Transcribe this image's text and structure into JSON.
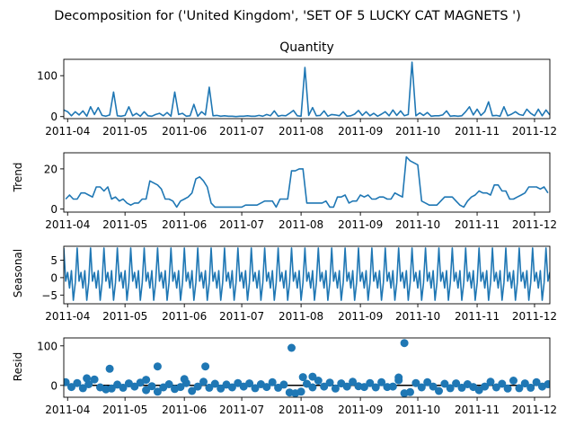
{
  "figure": {
    "suptitle": "Decomposition for ('United Kingdom', 'SET OF 5 LUCKY CAT MAGNETS ')"
  },
  "style": {
    "line_color": "#1f77b4",
    "axes_color": "#000000",
    "background": "#ffffff"
  },
  "chart_data": [
    {
      "type": "line",
      "title": "Quantity",
      "ylabel": "",
      "x_range": [
        "2011-03-30",
        "2011-12-09"
      ],
      "ylim": [
        -5,
        140
      ],
      "yticks": [
        0,
        100
      ],
      "xtick_labels": [
        "2011-04",
        "2011-05",
        "2011-06",
        "2011-07",
        "2011-08",
        "2011-09",
        "2011-10",
        "2011-11",
        "2011-12"
      ],
      "grid": false,
      "series": [
        {
          "x": [
            "2011-03-30",
            "2011-04-01",
            "2011-04-03",
            "2011-04-05",
            "2011-04-07",
            "2011-04-09",
            "2011-04-11",
            "2011-04-13",
            "2011-04-15",
            "2011-04-17",
            "2011-04-19",
            "2011-04-21",
            "2011-04-23",
            "2011-04-25",
            "2011-04-27",
            "2011-04-29",
            "2011-05-01",
            "2011-05-03",
            "2011-05-05",
            "2011-05-07",
            "2011-05-09",
            "2011-05-11",
            "2011-05-13",
            "2011-05-15",
            "2011-05-17",
            "2011-05-19",
            "2011-05-21",
            "2011-05-23",
            "2011-05-25",
            "2011-05-27",
            "2011-05-29",
            "2011-05-31",
            "2011-06-02",
            "2011-06-04",
            "2011-06-06",
            "2011-06-08",
            "2011-06-10",
            "2011-06-12",
            "2011-06-14",
            "2011-06-16",
            "2011-06-18",
            "2011-06-20",
            "2011-06-22",
            "2011-06-24",
            "2011-06-26",
            "2011-06-28",
            "2011-06-30",
            "2011-07-02",
            "2011-07-04",
            "2011-07-06",
            "2011-07-08",
            "2011-07-10",
            "2011-07-12",
            "2011-07-14",
            "2011-07-16",
            "2011-07-18",
            "2011-07-20",
            "2011-07-22",
            "2011-07-24",
            "2011-07-26",
            "2011-07-28",
            "2011-07-30",
            "2011-08-01",
            "2011-08-03",
            "2011-08-05",
            "2011-08-07",
            "2011-08-09",
            "2011-08-11",
            "2011-08-13",
            "2011-08-15",
            "2011-08-17",
            "2011-08-19",
            "2011-08-21",
            "2011-08-23",
            "2011-08-25",
            "2011-08-27",
            "2011-08-29",
            "2011-08-31",
            "2011-09-02",
            "2011-09-04",
            "2011-09-06",
            "2011-09-08",
            "2011-09-10",
            "2011-09-12",
            "2011-09-14",
            "2011-09-16",
            "2011-09-18",
            "2011-09-20",
            "2011-09-22",
            "2011-09-24",
            "2011-09-26",
            "2011-09-28",
            "2011-09-30",
            "2011-10-02",
            "2011-10-04",
            "2011-10-06",
            "2011-10-08",
            "2011-10-10",
            "2011-10-12",
            "2011-10-14",
            "2011-10-16",
            "2011-10-18",
            "2011-10-20",
            "2011-10-22",
            "2011-10-24",
            "2011-10-26",
            "2011-10-28",
            "2011-10-30",
            "2011-11-01",
            "2011-11-03",
            "2011-11-05",
            "2011-11-07",
            "2011-11-09",
            "2011-11-11",
            "2011-11-13",
            "2011-11-15",
            "2011-11-17",
            "2011-11-19",
            "2011-11-21",
            "2011-11-23",
            "2011-11-25",
            "2011-11-27",
            "2011-11-29",
            "2011-12-01",
            "2011-12-03",
            "2011-12-05",
            "2011-12-07",
            "2011-12-09"
          ],
          "values": [
            16,
            12,
            2,
            12,
            4,
            14,
            1,
            24,
            5,
            22,
            3,
            1,
            4,
            60,
            2,
            1,
            3,
            24,
            2,
            8,
            1,
            12,
            2,
            1,
            5,
            8,
            2,
            10,
            1,
            60,
            5,
            8,
            1,
            2,
            30,
            1,
            12,
            4,
            72,
            2,
            3,
            1,
            2,
            1,
            1,
            0,
            1,
            1,
            2,
            1,
            1,
            3,
            1,
            5,
            2,
            14,
            1,
            3,
            2,
            8,
            15,
            2,
            1,
            120,
            3,
            22,
            2,
            3,
            14,
            1,
            5,
            4,
            2,
            12,
            1,
            2,
            6,
            15,
            3,
            12,
            2,
            8,
            1,
            6,
            12,
            2,
            16,
            3,
            14,
            2,
            5,
            133,
            2,
            9,
            3,
            10,
            1,
            2,
            2,
            4,
            14,
            1,
            2,
            1,
            2,
            12,
            24,
            4,
            18,
            3,
            12,
            36,
            2,
            3,
            1,
            24,
            2,
            6,
            12,
            5,
            3,
            18,
            8,
            2,
            18,
            2,
            16,
            4
          ]
        }
      ]
    },
    {
      "type": "line",
      "title": "",
      "ylabel": "Trend",
      "x_range": [
        "2011-03-30",
        "2011-12-09"
      ],
      "ylim": [
        -1.5,
        28
      ],
      "yticks": [
        0,
        20
      ],
      "xtick_labels": [
        "2011-04",
        "2011-05",
        "2011-06",
        "2011-07",
        "2011-08",
        "2011-09",
        "2011-10",
        "2011-11",
        "2011-12"
      ],
      "grid": false,
      "series": [
        {
          "x": [
            "2011-03-31",
            "2011-04-02",
            "2011-04-04",
            "2011-04-06",
            "2011-04-08",
            "2011-04-10",
            "2011-04-12",
            "2011-04-14",
            "2011-04-16",
            "2011-04-18",
            "2011-04-20",
            "2011-04-22",
            "2011-04-24",
            "2011-04-26",
            "2011-04-28",
            "2011-04-30",
            "2011-05-02",
            "2011-05-04",
            "2011-05-06",
            "2011-05-08",
            "2011-05-10",
            "2011-05-12",
            "2011-05-14",
            "2011-05-16",
            "2011-05-18",
            "2011-05-20",
            "2011-05-22",
            "2011-05-24",
            "2011-05-26",
            "2011-05-28",
            "2011-05-30",
            "2011-06-01",
            "2011-06-03",
            "2011-06-05",
            "2011-06-07",
            "2011-06-09",
            "2011-06-11",
            "2011-06-13",
            "2011-06-15",
            "2011-06-17",
            "2011-06-19",
            "2011-06-21",
            "2011-06-23",
            "2011-06-25",
            "2011-06-27",
            "2011-06-29",
            "2011-07-01",
            "2011-07-03",
            "2011-07-05",
            "2011-07-07",
            "2011-07-09",
            "2011-07-11",
            "2011-07-13",
            "2011-07-15",
            "2011-07-17",
            "2011-07-19",
            "2011-07-21",
            "2011-07-23",
            "2011-07-25",
            "2011-07-27",
            "2011-07-29",
            "2011-07-31",
            "2011-08-02",
            "2011-08-04",
            "2011-08-06",
            "2011-08-08",
            "2011-08-10",
            "2011-08-12",
            "2011-08-14",
            "2011-08-16",
            "2011-08-18",
            "2011-08-20",
            "2011-08-22",
            "2011-08-24",
            "2011-08-26",
            "2011-08-28",
            "2011-08-30",
            "2011-09-01",
            "2011-09-03",
            "2011-09-05",
            "2011-09-07",
            "2011-09-09",
            "2011-09-11",
            "2011-09-13",
            "2011-09-15",
            "2011-09-17",
            "2011-09-19",
            "2011-09-21",
            "2011-09-23",
            "2011-09-25",
            "2011-09-27",
            "2011-09-29",
            "2011-10-01",
            "2011-10-03",
            "2011-10-05",
            "2011-10-07",
            "2011-10-09",
            "2011-10-11",
            "2011-10-13",
            "2011-10-15",
            "2011-10-17",
            "2011-10-19",
            "2011-10-21",
            "2011-10-23",
            "2011-10-25",
            "2011-10-27",
            "2011-10-29",
            "2011-10-31",
            "2011-11-02",
            "2011-11-04",
            "2011-11-06",
            "2011-11-08",
            "2011-11-10",
            "2011-11-12",
            "2011-11-14",
            "2011-11-16",
            "2011-11-18",
            "2011-11-20",
            "2011-11-22",
            "2011-11-24",
            "2011-11-26",
            "2011-11-28",
            "2011-11-30",
            "2011-12-02",
            "2011-12-04",
            "2011-12-06",
            "2011-12-08"
          ],
          "values": [
            5,
            7,
            5,
            5,
            8,
            8,
            7,
            6,
            11,
            11,
            9,
            11,
            5,
            6,
            4,
            5,
            3,
            2,
            3,
            3,
            5,
            5,
            14,
            13,
            12,
            10,
            5,
            5,
            4,
            1,
            4,
            5,
            6,
            8,
            15,
            16,
            14,
            11,
            3,
            1,
            1,
            1,
            1,
            1,
            1,
            1,
            1,
            2,
            2,
            2,
            2,
            3,
            4,
            4,
            4,
            1,
            5,
            5,
            5,
            19,
            19,
            20,
            20,
            3,
            3,
            3,
            3,
            3,
            4,
            1,
            1,
            6,
            6,
            7,
            3,
            4,
            4,
            7,
            6,
            7,
            5,
            5,
            6,
            6,
            5,
            5,
            8,
            7,
            6,
            26,
            24,
            23,
            22,
            4,
            3,
            2,
            2,
            2,
            4,
            6,
            6,
            6,
            4,
            2,
            1,
            4,
            6,
            7,
            9,
            8,
            8,
            7,
            12,
            12,
            9,
            9,
            5,
            5,
            6,
            7,
            8,
            11,
            11,
            11,
            10,
            11,
            8
          ]
        }
      ]
    },
    {
      "type": "line",
      "title": "",
      "ylabel": "Seasonal",
      "x_range": [
        "2011-03-30",
        "2011-12-09"
      ],
      "ylim": [
        -7.5,
        9
      ],
      "yticks": [
        -5,
        0,
        5
      ],
      "xtick_labels": [
        "2011-04",
        "2011-05",
        "2011-06",
        "2011-07",
        "2011-08",
        "2011-09",
        "2011-10",
        "2011-11",
        "2011-12"
      ],
      "grid": false,
      "period": 7,
      "pattern": [
        8.5,
        -1.0,
        1.5,
        -3.0,
        2.0,
        -6.5,
        -1.5
      ],
      "pattern_start": "2011-03-30",
      "pattern_step_days": 1
    },
    {
      "type": "scatter",
      "title": "",
      "ylabel": "Resid",
      "x_range": [
        "2011-03-30",
        "2011-12-09"
      ],
      "ylim": [
        -30,
        120
      ],
      "yticks": [
        0,
        100
      ],
      "xtick_labels": [
        "2011-04",
        "2011-05",
        "2011-06",
        "2011-07",
        "2011-08",
        "2011-09",
        "2011-10",
        "2011-11",
        "2011-12"
      ],
      "grid": false,
      "zero_line": true,
      "series": [
        {
          "x": [
            "2011-03-31",
            "2011-04-03",
            "2011-04-06",
            "2011-04-09",
            "2011-04-12",
            "2011-04-15",
            "2011-04-18",
            "2011-04-21",
            "2011-04-24",
            "2011-04-27",
            "2011-04-30",
            "2011-05-03",
            "2011-05-06",
            "2011-05-09",
            "2011-05-12",
            "2011-05-15",
            "2011-05-18",
            "2011-05-21",
            "2011-05-24",
            "2011-05-27",
            "2011-05-30",
            "2011-06-02",
            "2011-06-05",
            "2011-06-08",
            "2011-06-11",
            "2011-06-14",
            "2011-06-17",
            "2011-06-20",
            "2011-06-23",
            "2011-06-26",
            "2011-06-29",
            "2011-07-02",
            "2011-07-05",
            "2011-07-08",
            "2011-07-11",
            "2011-07-14",
            "2011-07-17",
            "2011-07-20",
            "2011-07-23",
            "2011-07-26",
            "2011-07-29",
            "2011-08-01",
            "2011-08-04",
            "2011-08-07",
            "2011-08-10",
            "2011-08-13",
            "2011-08-16",
            "2011-08-19",
            "2011-08-22",
            "2011-08-25",
            "2011-08-28",
            "2011-08-31",
            "2011-09-03",
            "2011-09-06",
            "2011-09-09",
            "2011-09-12",
            "2011-09-15",
            "2011-09-18",
            "2011-09-21",
            "2011-09-24",
            "2011-09-27",
            "2011-09-30",
            "2011-10-03",
            "2011-10-06",
            "2011-10-09",
            "2011-10-12",
            "2011-10-15",
            "2011-10-18",
            "2011-10-21",
            "2011-10-24",
            "2011-10-27",
            "2011-10-30",
            "2011-11-02",
            "2011-11-05",
            "2011-11-08",
            "2011-11-11",
            "2011-11-14",
            "2011-11-17",
            "2011-11-20",
            "2011-11-23",
            "2011-11-26",
            "2011-11-29",
            "2011-12-02",
            "2011-12-05",
            "2011-12-08",
            "2011-04-11",
            "2011-04-23",
            "2011-05-18",
            "2011-05-12",
            "2011-06-01",
            "2011-06-12",
            "2011-07-27",
            "2011-08-02",
            "2011-08-07",
            "2011-09-21",
            "2011-09-24"
          ],
          "values": [
            8,
            -4,
            6,
            -7,
            3,
            15,
            -5,
            -10,
            -8,
            2,
            -6,
            5,
            -3,
            7,
            -12,
            -2,
            -16,
            -5,
            3,
            -9,
            -4,
            6,
            -14,
            -3,
            9,
            -6,
            4,
            -8,
            2,
            -5,
            6,
            -3,
            5,
            -7,
            3,
            -4,
            8,
            -6,
            2,
            -18,
            -20,
            -16,
            4,
            -5,
            12,
            -3,
            7,
            -8,
            5,
            -3,
            9,
            -2,
            -4,
            6,
            -5,
            8,
            -4,
            -3,
            13,
            -20,
            -17,
            6,
            -5,
            8,
            -3,
            -14,
            4,
            -7,
            5,
            -6,
            3,
            -4,
            -12,
            -3,
            9,
            -5,
            4,
            -8,
            12,
            -7,
            5,
            -6,
            8,
            -3,
            3,
            18,
            42,
            48,
            14,
            16,
            48,
            95,
            21,
            22,
            20,
            107
          ]
        }
      ]
    }
  ]
}
